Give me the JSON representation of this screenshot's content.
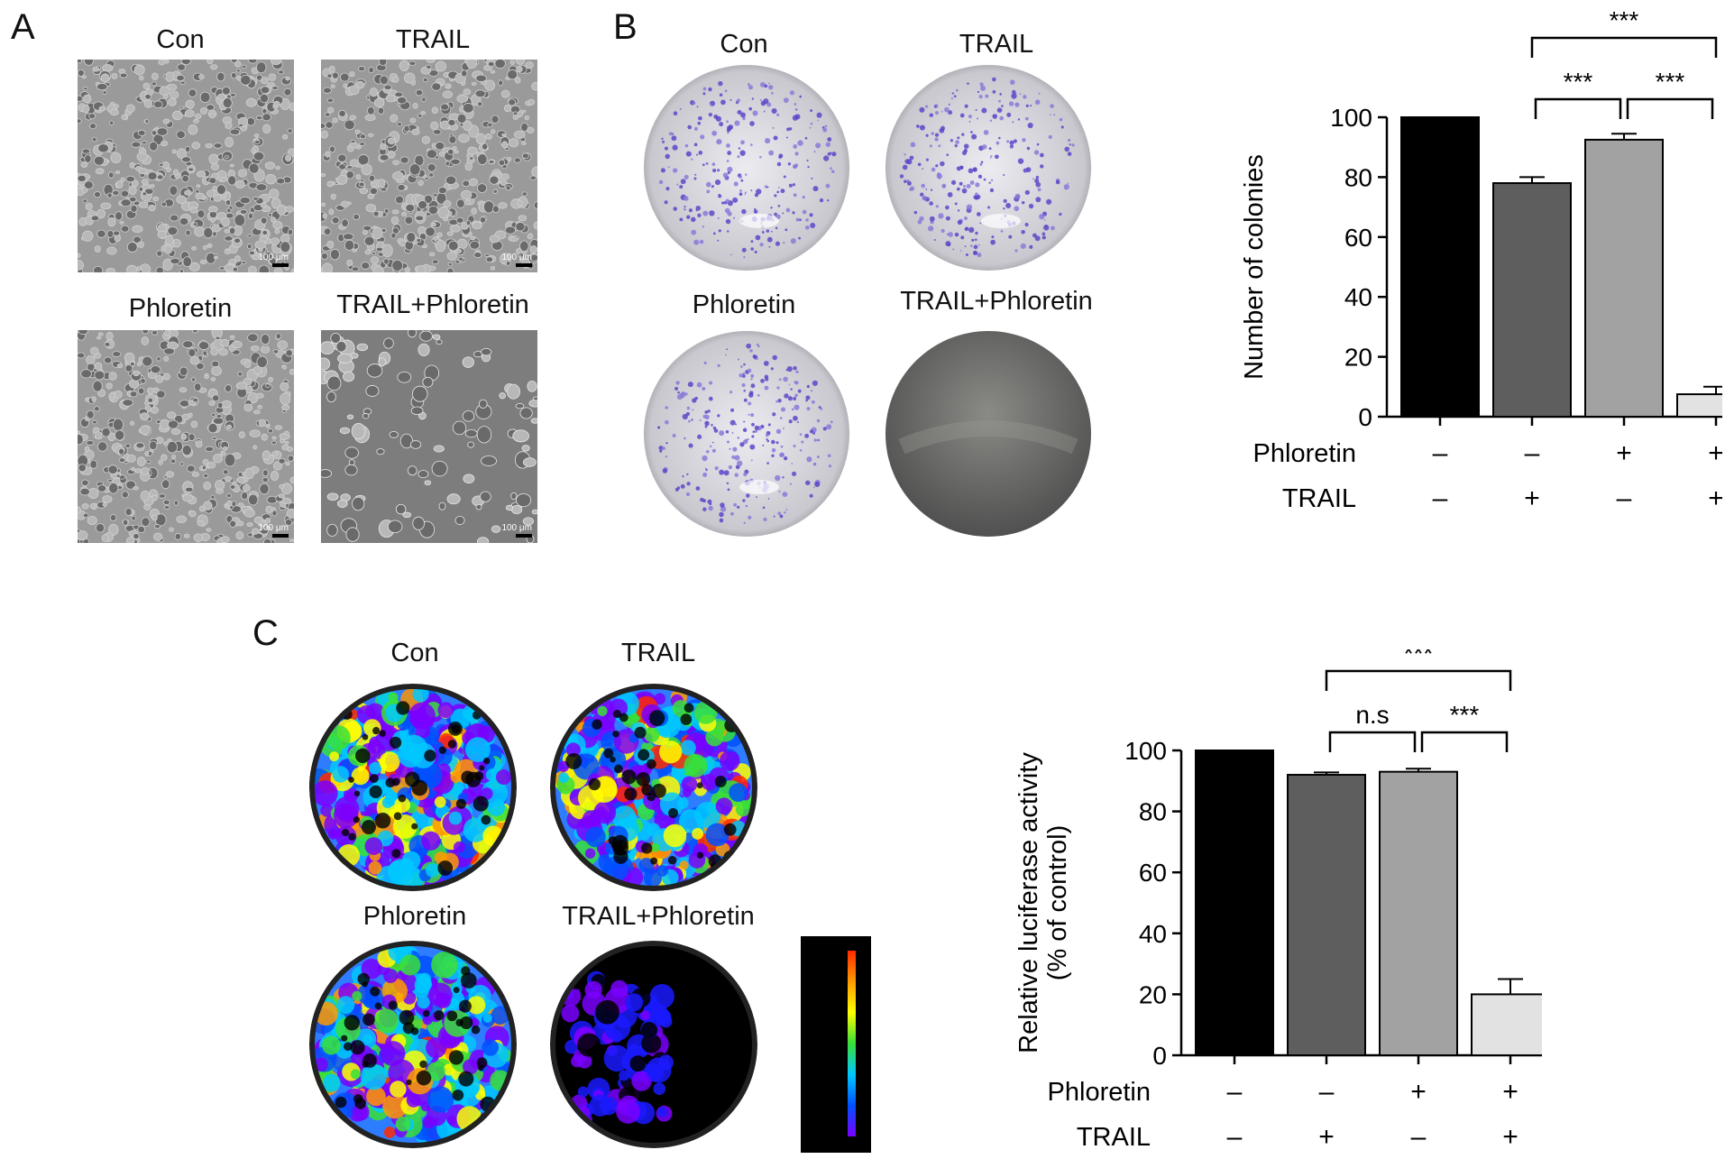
{
  "panels": {
    "A": {
      "letter": "A",
      "images": [
        {
          "label": "Con",
          "scale": "100 μm",
          "density": "dense"
        },
        {
          "label": "TRAIL",
          "scale": "100 μm",
          "density": "dense"
        },
        {
          "label": "Phloretin",
          "scale": "100 μm",
          "density": "dense"
        },
        {
          "label": "TRAIL+Phloretin",
          "scale": "100 μm",
          "density": "sparse"
        }
      ]
    },
    "B": {
      "letter": "B",
      "dishes": [
        {
          "label": "Con",
          "colonies": "many"
        },
        {
          "label": "TRAIL",
          "colonies": "many"
        },
        {
          "label": "Phloretin",
          "colonies": "many"
        },
        {
          "label": "TRAIL+Phloretin",
          "colonies": "none"
        }
      ]
    },
    "C": {
      "letter": "C",
      "heatmaps": [
        {
          "label": "Con",
          "signal": "high"
        },
        {
          "label": "TRAIL",
          "signal": "high"
        },
        {
          "label": "Phloretin",
          "signal": "high"
        },
        {
          "label": "TRAIL+Phloretin",
          "signal": "low"
        }
      ],
      "colorbar": {
        "colors": [
          "#ff2a00",
          "#ff9a00",
          "#ffff00",
          "#38e038",
          "#00c8ff",
          "#0050ff",
          "#7a00ff"
        ]
      }
    }
  },
  "chart_data": [
    {
      "type": "bar",
      "panel": "B",
      "ylabel": "Number of colonies",
      "ylim": [
        0,
        100
      ],
      "yticks": [
        0,
        20,
        40,
        60,
        80,
        100
      ],
      "values": [
        100,
        78,
        92.5,
        7.5
      ],
      "errors": [
        0,
        2,
        2,
        2.5
      ],
      "bar_colors": [
        "#000000",
        "#5e5e5e",
        "#a2a2a2",
        "#e2e2e2"
      ],
      "factor_rows": [
        {
          "name": "Phloretin",
          "signs": [
            "–",
            "–",
            "+",
            "+"
          ]
        },
        {
          "name": "TRAIL",
          "signs": [
            "–",
            "+",
            "–",
            "+"
          ]
        }
      ],
      "comparisons": [
        {
          "from": 1,
          "to": 2,
          "label": "***",
          "level": 1
        },
        {
          "from": 2,
          "to": 3,
          "label": "***",
          "level": 1
        },
        {
          "from": 1,
          "to": 3,
          "label": "***",
          "level": 2
        }
      ]
    },
    {
      "type": "bar",
      "panel": "C",
      "ylabel": [
        "Relative luciferase activity",
        "(% of control)"
      ],
      "ylim": [
        0,
        100
      ],
      "yticks": [
        0,
        20,
        40,
        60,
        80,
        100
      ],
      "values": [
        100,
        92,
        93,
        20
      ],
      "errors": [
        0,
        0.8,
        1,
        5
      ],
      "bar_colors": [
        "#000000",
        "#5e5e5e",
        "#a2a2a2",
        "#e2e2e2"
      ],
      "factor_rows": [
        {
          "name": "Phloretin",
          "signs": [
            "–",
            "–",
            "+",
            "+"
          ]
        },
        {
          "name": "TRAIL",
          "signs": [
            "–",
            "+",
            "–",
            "+"
          ]
        }
      ],
      "comparisons": [
        {
          "from": 1,
          "to": 2,
          "label": "n.s",
          "level": 1
        },
        {
          "from": 2,
          "to": 3,
          "label": "***",
          "level": 1
        },
        {
          "from": 1,
          "to": 3,
          "label": "***",
          "level": 2
        }
      ]
    }
  ]
}
